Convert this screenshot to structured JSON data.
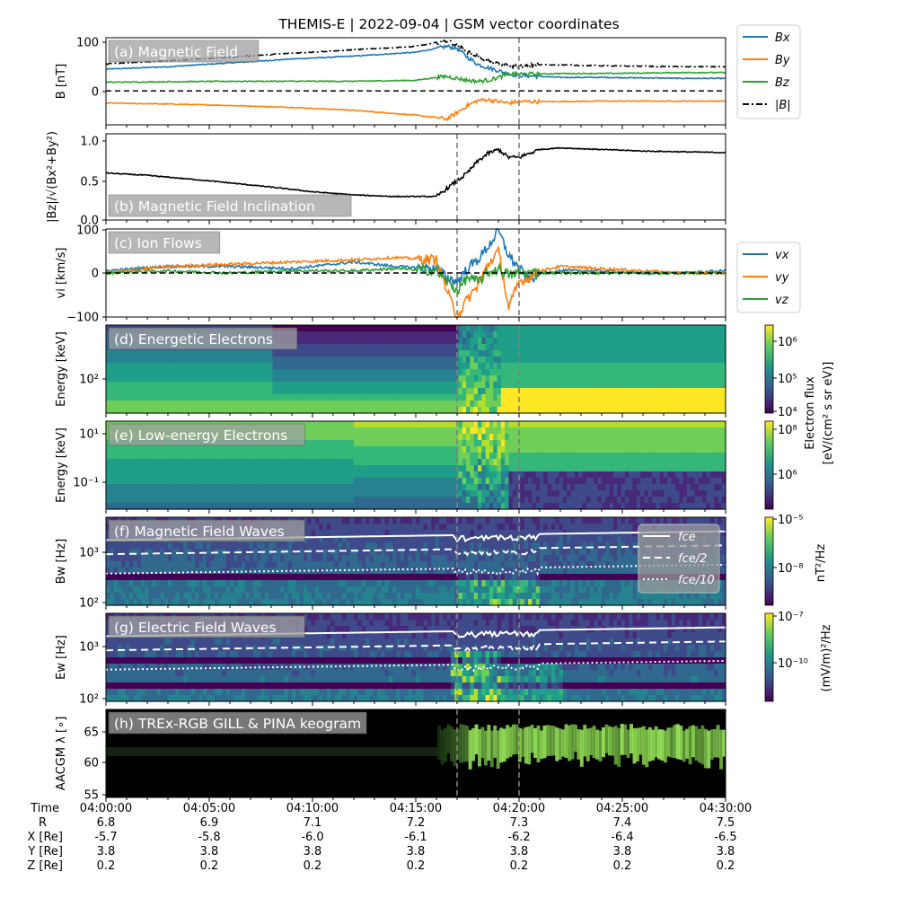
{
  "title": "THEMIS-E | 2022-09-04 | GSM vector coordinates",
  "colors": {
    "blue": "#1f77b4",
    "orange": "#ff7f0e",
    "green": "#2ca02c",
    "black": "#000000",
    "dash_line": "#808080"
  },
  "event_lines": [
    "04:17:00",
    "04:20:00"
  ],
  "panels": [
    {
      "id": "a",
      "title": "(a) Magnetic Field",
      "ylabel": "B [nT]",
      "yticks": [
        "100",
        "0"
      ]
    },
    {
      "id": "b",
      "title": "(b) Magnetic Field Inclination",
      "ylabel": "|Bz|/√(Bx²+By²)",
      "yticks": [
        "1.0",
        "0.5",
        "0.0"
      ]
    },
    {
      "id": "c",
      "title": "(c) Ion Flows",
      "ylabel": "vi [km/s]",
      "yticks": [
        "100",
        "0",
        "−100"
      ]
    },
    {
      "id": "d",
      "title": "(d) Energetic Electrons",
      "ylabel": "Energy [keV]",
      "yticks": [
        "10²"
      ]
    },
    {
      "id": "e",
      "title": "(e) Low-energy Electrons",
      "ylabel": "Energy [keV]",
      "yticks": [
        "10¹",
        "10⁻¹"
      ]
    },
    {
      "id": "f",
      "title": "(f) Magnetic Field Waves",
      "ylabel": "Bw [Hz]",
      "yticks": [
        "10³",
        "10²"
      ]
    },
    {
      "id": "g",
      "title": "(g) Electric Field Waves",
      "ylabel": "Ew [Hz]",
      "yticks": [
        "10³",
        "10²"
      ]
    },
    {
      "id": "h",
      "title": "(h) TREx-RGB GILL & PINA keogram",
      "ylabel": "AACGM λ [∘]",
      "yticks": [
        "65",
        "60",
        "55"
      ]
    }
  ],
  "legend_b": [
    "Bx",
    "By",
    "Bz",
    "|B|"
  ],
  "legend_v": [
    "vx",
    "vy",
    "vz"
  ],
  "legend_f": [
    "fce",
    "fce/2",
    "fce/10"
  ],
  "colorbars": {
    "electron": {
      "label1": "Electron flux",
      "label2": "[eV/(cm² s sr eV)]",
      "ticks_d": [
        "10⁶",
        "10⁵",
        "10⁴"
      ],
      "ticks_e": [
        "10⁸",
        "10⁶"
      ]
    },
    "bwave": {
      "label": "nT²/Hz",
      "ticks": [
        "10⁻⁵",
        "10⁻⁸"
      ]
    },
    "ewave": {
      "label": "(mV/m)²/Hz",
      "ticks": [
        "10⁻⁷",
        "10⁻¹⁰"
      ]
    }
  },
  "footer": {
    "row_labels": [
      "Time",
      "R",
      "X [Re]",
      "Y [Re]",
      "Z [Re]"
    ],
    "columns": [
      {
        "time": "04:00:00",
        "R": "6.8",
        "X": "-5.7",
        "Y": "3.8",
        "Z": "0.2"
      },
      {
        "time": "04:05:00",
        "R": "6.9",
        "X": "-5.8",
        "Y": "3.8",
        "Z": "0.2"
      },
      {
        "time": "04:10:00",
        "R": "7.1",
        "X": "-6.0",
        "Y": "3.8",
        "Z": "0.2"
      },
      {
        "time": "04:15:00",
        "R": "7.2",
        "X": "-6.1",
        "Y": "3.8",
        "Z": "0.2"
      },
      {
        "time": "04:20:00",
        "R": "7.3",
        "X": "-6.2",
        "Y": "3.8",
        "Z": "0.2"
      },
      {
        "time": "04:25:00",
        "R": "7.4",
        "X": "-6.4",
        "Y": "3.8",
        "Z": "0.2"
      },
      {
        "time": "04:30:00",
        "R": "7.5",
        "X": "-6.5",
        "Y": "3.8",
        "Z": "0.2"
      }
    ]
  },
  "chart_data": [
    {
      "type": "line",
      "id": "a",
      "title": "(a) Magnetic Field",
      "ylabel": "B [nT]",
      "ylim": [
        -70,
        110
      ],
      "x_minutes": [
        0,
        3,
        6,
        9,
        12,
        15,
        16,
        16.5,
        17,
        17.5,
        18,
        18.5,
        19,
        19.5,
        20,
        21,
        22,
        24,
        26,
        28,
        30
      ],
      "series": [
        {
          "name": "Bx",
          "values": [
            45,
            50,
            58,
            66,
            72,
            80,
            88,
            92,
            88,
            70,
            55,
            48,
            42,
            35,
            32,
            30,
            28,
            28,
            27,
            26,
            26
          ]
        },
        {
          "name": "By",
          "values": [
            -25,
            -27,
            -30,
            -34,
            -40,
            -50,
            -55,
            -58,
            -45,
            -30,
            -20,
            -18,
            -22,
            -25,
            -22,
            -22,
            -22,
            -21,
            -21,
            -21,
            -21
          ]
        },
        {
          "name": "Bz",
          "values": [
            18,
            19,
            20,
            20,
            20,
            22,
            28,
            30,
            26,
            22,
            20,
            22,
            28,
            35,
            35,
            35,
            36,
            36,
            37,
            38,
            38
          ]
        },
        {
          "name": "|B|",
          "values": [
            56,
            62,
            70,
            78,
            85,
            92,
            100,
            104,
            95,
            80,
            72,
            62,
            55,
            52,
            50,
            54,
            54,
            52,
            51,
            50,
            50
          ]
        }
      ]
    },
    {
      "type": "line",
      "id": "b",
      "title": "(b) Magnetic Field Inclination",
      "ylim": [
        0,
        1.1
      ],
      "x_minutes": [
        0,
        2,
        5,
        8,
        10,
        12,
        14,
        16,
        16.5,
        17,
        17.5,
        18,
        18.5,
        19,
        19.5,
        20,
        21,
        22,
        24,
        26,
        28,
        30
      ],
      "series": [
        {
          "name": "",
          "values": [
            0.6,
            0.57,
            0.5,
            0.42,
            0.36,
            0.32,
            0.3,
            0.3,
            0.4,
            0.5,
            0.6,
            0.75,
            0.85,
            0.9,
            0.8,
            0.8,
            0.9,
            0.92,
            0.9,
            0.88,
            0.87,
            0.86
          ]
        }
      ]
    },
    {
      "type": "line",
      "id": "c",
      "title": "(c) Ion Flows",
      "ylabel": "vi [km/s]",
      "ylim": [
        -100,
        100
      ],
      "x_minutes": [
        0,
        3,
        6,
        9,
        12,
        14,
        16,
        16.5,
        17,
        17.5,
        18,
        18.5,
        19,
        19.5,
        20,
        20.5,
        21,
        22,
        24,
        26,
        28,
        30
      ],
      "series": [
        {
          "name": "vx",
          "values": [
            5,
            15,
            15,
            10,
            25,
            15,
            10,
            -10,
            -20,
            10,
            30,
            60,
            95,
            40,
            10,
            -15,
            0,
            5,
            5,
            0,
            0,
            5
          ]
        },
        {
          "name": "vy",
          "values": [
            0,
            15,
            20,
            25,
            30,
            35,
            30,
            -40,
            -100,
            -60,
            -30,
            20,
            50,
            -80,
            -20,
            -10,
            5,
            15,
            10,
            5,
            0,
            0
          ]
        },
        {
          "name": "vz",
          "values": [
            0,
            5,
            0,
            5,
            5,
            10,
            5,
            -20,
            -40,
            -10,
            -20,
            0,
            10,
            -5,
            0,
            0,
            0,
            0,
            0,
            0,
            0,
            0
          ]
        }
      ]
    },
    {
      "type": "heatmap",
      "id": "d",
      "title": "(d) Energetic Electrons",
      "ylabel": "Energy [keV]",
      "colorbar": "Electron flux [eV/(cm² s sr eV)]",
      "crange": [
        "10⁴",
        "10⁶"
      ]
    },
    {
      "type": "heatmap",
      "id": "e",
      "title": "(e) Low-energy Electrons",
      "ylabel": "Energy [keV]",
      "colorbar": "Electron flux [eV/(cm² s sr eV)]",
      "crange": [
        "10⁶",
        "10⁸"
      ]
    },
    {
      "type": "heatmap",
      "id": "f",
      "title": "(f) Magnetic Field Waves",
      "ylabel": "Bw [Hz]",
      "colorbar": "nT²/Hz",
      "crange": [
        "10⁻⁸",
        "10⁻⁵"
      ]
    },
    {
      "type": "heatmap",
      "id": "g",
      "title": "(g) Electric Field Waves",
      "ylabel": "Ew [Hz]",
      "colorbar": "(mV/m)²/Hz",
      "crange": [
        "10⁻¹⁰",
        "10⁻⁷"
      ]
    },
    {
      "type": "heatmap",
      "id": "h",
      "title": "(h) TREx-RGB GILL & PINA keogram",
      "ylabel": "AACGM λ [∘]",
      "ylim": [
        54.5,
        68.5
      ]
    }
  ]
}
